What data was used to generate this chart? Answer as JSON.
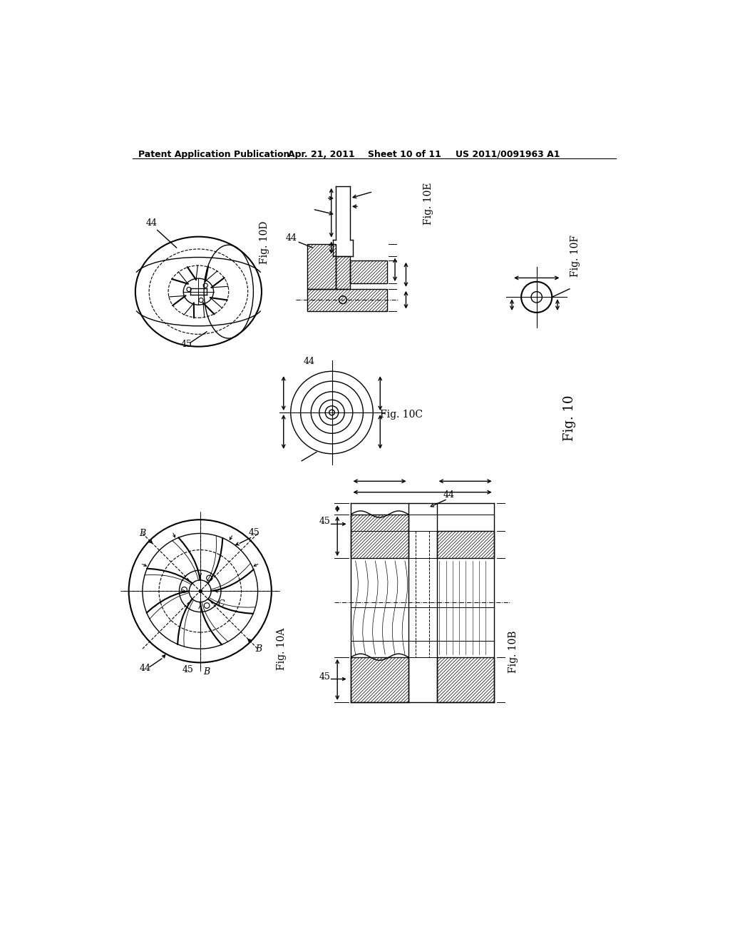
{
  "background_color": "#ffffff",
  "header_text": "Patent Application Publication",
  "header_date": "Apr. 21, 2011",
  "header_sheet": "Sheet 10 of 11",
  "header_patent": "US 2011/0091963 A1",
  "fig_labels": {
    "fig10D": "Fig. 10D",
    "fig10E": "Fig. 10E",
    "fig10F": "Fig. 10F",
    "fig10C": "Fig. 10C",
    "fig10": "Fig. 10",
    "fig10A": "Fig. 10A",
    "fig10B": "Fig. 10B"
  }
}
